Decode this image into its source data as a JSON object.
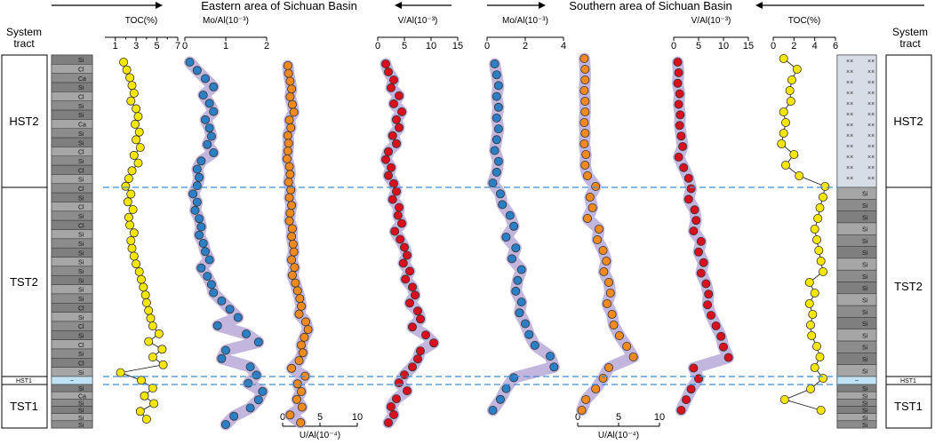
{
  "chart_data": {
    "type": "scatter",
    "title_eastern": "Eastern area of Sichuan Basin",
    "title_southern": "Southern area of Sichuan Basin",
    "system_tract_label_left": [
      "System",
      "tract"
    ],
    "system_tract_label_right": [
      "System",
      "tract"
    ],
    "tracts": [
      "HST2",
      "TST2",
      "HST1",
      "TST1"
    ],
    "lith_labels_left": [
      "Si",
      "Cl",
      "Ca",
      "Si",
      "Cl",
      "Si",
      "Si",
      "Ca",
      "Si",
      "Si",
      "Cl",
      "Si",
      "Cl",
      "Si",
      "Cl",
      "Si",
      "Cl",
      "Si",
      "Cl",
      "Si",
      "Si",
      "Si",
      "Si",
      "Si",
      "Si",
      "Si",
      "Si",
      "Cl",
      "Si",
      "Cl",
      "Si",
      "Cl",
      "Si",
      "Cl",
      "Si",
      "Si",
      "Ca",
      "Si",
      "Si",
      "Si",
      "Si",
      "Si",
      "Si",
      "Si",
      "Si",
      "Si",
      "Cl"
    ],
    "lith_labels_right": [
      "Si",
      "Si",
      "Si",
      "Si",
      "Si",
      "Si",
      "Si",
      "Si",
      "Si",
      "Si",
      "Si",
      "Si",
      "Si",
      "Si",
      "Si",
      "Si",
      "Si",
      "Si",
      "Si",
      "Si",
      "Si",
      "Si",
      "Si"
    ],
    "colors": {
      "toc": "#f5e600",
      "mo": "#2b7fc4",
      "v": "#d9101e",
      "u": "#f08a1e",
      "band": "#b7a9d8",
      "dash": "#3f8ed8"
    },
    "panels": [
      {
        "label": "TOC(%)",
        "ticks": [
          "1",
          "3",
          "5",
          "7"
        ],
        "ticks_extra": [
          "2",
          "4",
          "6"
        ]
      },
      {
        "label": "Mo/Al(10⁻³)",
        "ticks": [
          "0",
          "1",
          "2"
        ]
      },
      {
        "label": "U/Al(10⁻⁴)",
        "ticks": [
          "0",
          "5",
          "10"
        ]
      },
      {
        "label": "V/Al(10⁻³)",
        "ticks": [
          "0",
          "5",
          "10",
          "15"
        ]
      },
      {
        "label": "Mo/Al(10⁻³)",
        "ticks": [
          "0",
          "2",
          "4"
        ]
      },
      {
        "label": "U/Al(10⁻⁴)",
        "ticks": [
          "0",
          "5",
          "10"
        ]
      },
      {
        "label": "V/Al(10⁻³)",
        "ticks": [
          "0",
          "5",
          "10",
          "15"
        ]
      },
      {
        "label": "TOC(%)",
        "ticks": [
          "0",
          "2",
          "4",
          "6"
        ]
      }
    ],
    "series_eastern": {
      "toc": [
        1.8,
        2.1,
        2.4,
        2.6,
        2.8,
        2.5,
        3.0,
        3.2,
        2.9,
        3.3,
        3.0,
        3.4,
        2.8,
        3.2,
        2.6,
        2.3,
        2.0,
        2.5,
        2.2,
        2.7,
        2.3,
        2.4,
        2.8,
        2.5,
        2.6,
        2.8,
        3.0,
        3.3,
        3.5,
        3.7,
        3.9,
        4.0,
        4.2,
        4.4,
        4.6,
        5.2,
        4.2,
        5.5,
        4.6,
        5.6,
        1.5,
        3.5,
        4.6,
        3.8,
        4.7,
        3.4,
        4.0
      ],
      "mo": [
        0.12,
        0.3,
        0.5,
        0.7,
        0.45,
        0.6,
        0.7,
        0.5,
        0.6,
        0.65,
        0.55,
        0.7,
        0.4,
        0.3,
        0.35,
        0.3,
        0.2,
        0.3,
        0.25,
        0.35,
        0.4,
        0.35,
        0.45,
        0.5,
        0.6,
        0.4,
        0.55,
        0.65,
        0.7,
        0.9,
        1.1,
        1.3,
        0.8,
        1.5,
        1.8,
        1.0,
        0.9,
        1.6,
        1.75,
        1.55,
        1.9,
        1.8,
        1.6,
        1.2,
        1.0
      ],
      "u": [
        0.7,
        0.8,
        1.0,
        1.2,
        1.0,
        1.3,
        1.5,
        0.9,
        1.1,
        0.7,
        0.8,
        0.7,
        0.6,
        0.9,
        1.0,
        0.8,
        1.1,
        0.9,
        1.2,
        1.0,
        0.9,
        1.3,
        1.2,
        1.4,
        1.5,
        1.2,
        1.6,
        1.3,
        1.7,
        2.0,
        2.3,
        2.5,
        2.2,
        3.1,
        3.4,
        2.9,
        2.5,
        2.7,
        2.2,
        1.2,
        3.0,
        2.0,
        2.5,
        1.9,
        2.6,
        1.0,
        2.4
      ],
      "v": [
        1.5,
        2.0,
        3.0,
        2.5,
        4.0,
        3.0,
        4.5,
        3.5,
        4.0,
        2.8,
        3.5,
        2.0,
        1.5,
        2.5,
        2.0,
        3.0,
        3.5,
        2.8,
        4.0,
        3.8,
        4.5,
        3.2,
        4.2,
        5.0,
        5.5,
        4.8,
        6.0,
        5.2,
        6.5,
        7.0,
        6.0,
        7.5,
        8.0,
        6.5,
        9.0,
        10.5,
        8.0,
        7.5,
        6.5,
        5.0,
        4.0,
        5.5,
        3.5,
        2.5,
        3.0,
        2.0
      ]
    },
    "series_southern": {
      "mo": [
        0.4,
        0.5,
        0.6,
        0.5,
        0.6,
        0.5,
        0.6,
        0.5,
        0.4,
        0.6,
        0.5,
        0.3,
        0.7,
        0.8,
        1.2,
        1.4,
        1.0,
        1.5,
        1.3,
        1.8,
        1.6,
        1.5,
        1.8,
        1.7,
        2.0,
        2.2,
        2.5,
        3.3,
        3.5,
        1.4,
        1.0,
        0.7,
        0.3
      ],
      "u": [
        0.8,
        0.9,
        0.9,
        0.8,
        0.9,
        0.9,
        0.8,
        0.9,
        0.8,
        1.0,
        0.9,
        1.2,
        2.2,
        1.5,
        1.8,
        1.2,
        2.6,
        2.4,
        3.1,
        3.5,
        3.2,
        3.8,
        4.0,
        3.6,
        4.2,
        4.4,
        5.1,
        6.0,
        6.8,
        3.8,
        3.1,
        2.2,
        1.0,
        0.5
      ],
      "v": [
        0.8,
        1.0,
        0.8,
        1.2,
        1.0,
        1.3,
        1.2,
        1.5,
        1.8,
        1.0,
        2.0,
        3.0,
        3.5,
        3.0,
        4.2,
        4.5,
        4.0,
        5.5,
        5.0,
        6.0,
        5.5,
        6.5,
        7.0,
        6.8,
        7.5,
        8.5,
        9.5,
        10.0,
        11.0,
        4.0,
        5.0,
        3.5,
        2.5,
        1.5
      ],
      "toc": [
        1.0,
        2.3,
        1.8,
        1.6,
        1.7,
        1.0,
        1.2,
        1.0,
        0.8,
        2.0,
        1.2,
        2.5,
        5.0,
        4.8,
        4.5,
        4.3,
        4.0,
        4.2,
        4.4,
        4.6,
        4.8,
        3.5,
        4.0,
        3.5,
        3.8,
        3.6,
        3.7,
        4.2,
        4.5,
        4.0,
        4.8,
        3.6,
        1.1,
        4.6
      ]
    }
  }
}
